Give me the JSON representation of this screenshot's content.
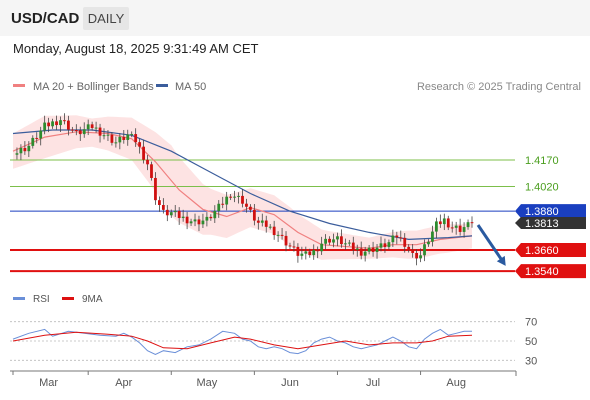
{
  "header": {
    "symbol": "USD/CAD",
    "timeframe": "DAILY",
    "timestamp": "Monday, August 18, 2025 9:31:49 AM CET"
  },
  "colors": {
    "ma20": "#f08080",
    "bollinger_fill": "#fde3e3",
    "ma50": "#3b5d9c",
    "bull_candle": "#2e8b2e",
    "bear_candle": "#d01010",
    "green_level": "#7cbf4a",
    "blue_level": "#1a3fbf",
    "red_level": "#e01010",
    "last_price_badge": "#333333",
    "rsi": "#6a8fd8",
    "rsi_ma": "#dd1111",
    "arrow": "#2a5aa0"
  },
  "chart_data": [
    {
      "type": "candlestick",
      "title": "USD/CAD",
      "timeframe": "DAILY",
      "legend": [
        "MA 20 + Bollinger Bands",
        "MA 50"
      ],
      "source": "Research © 2025 Trading Central",
      "x_labels": [
        "Mar",
        "Apr",
        "May",
        "Jun",
        "Jul",
        "Aug"
      ],
      "ylim": [
        1.349,
        1.451
      ],
      "last_price": "1.3813",
      "levels": [
        {
          "value": 1.417,
          "label": "1.4170",
          "kind": "green"
        },
        {
          "value": 1.402,
          "label": "1.4020",
          "kind": "green"
        },
        {
          "value": 1.388,
          "label": "1.3880",
          "kind": "blue"
        },
        {
          "value": 1.366,
          "label": "1.3660",
          "kind": "red"
        },
        {
          "value": 1.354,
          "label": "1.3540",
          "kind": "red"
        }
      ],
      "close_path": [
        [
          0,
          1.42
        ],
        [
          4,
          1.425
        ],
        [
          8,
          1.436
        ],
        [
          12,
          1.44
        ],
        [
          16,
          1.432
        ],
        [
          20,
          1.436
        ],
        [
          24,
          1.43
        ],
        [
          26,
          1.427
        ],
        [
          29,
          1.431
        ],
        [
          31,
          1.428
        ],
        [
          34,
          1.415
        ],
        [
          36,
          1.396
        ],
        [
          38,
          1.387
        ],
        [
          40,
          1.387
        ],
        [
          43,
          1.384
        ],
        [
          46,
          1.382
        ],
        [
          49,
          1.383
        ],
        [
          52,
          1.39
        ],
        [
          55,
          1.398
        ],
        [
          58,
          1.394
        ],
        [
          60,
          1.387
        ],
        [
          62,
          1.381
        ],
        [
          64,
          1.38
        ],
        [
          67,
          1.375
        ],
        [
          70,
          1.368
        ],
        [
          72,
          1.364
        ],
        [
          74,
          1.363
        ],
        [
          76,
          1.365
        ],
        [
          78,
          1.37
        ],
        [
          80,
          1.372
        ],
        [
          82,
          1.372
        ],
        [
          85,
          1.368
        ],
        [
          88,
          1.365
        ],
        [
          90,
          1.366
        ],
        [
          93,
          1.368
        ],
        [
          95,
          1.37
        ],
        [
          97,
          1.374
        ],
        [
          99,
          1.37
        ],
        [
          101,
          1.363
        ],
        [
          103,
          1.363
        ],
        [
          105,
          1.372
        ],
        [
          107,
          1.38
        ],
        [
          109,
          1.383
        ],
        [
          111,
          1.379
        ],
        [
          113,
          1.378
        ],
        [
          115,
          1.38
        ],
        [
          116,
          1.3813
        ]
      ],
      "ma20": [
        [
          0,
          1.422
        ],
        [
          8,
          1.43
        ],
        [
          16,
          1.433
        ],
        [
          24,
          1.432
        ],
        [
          30,
          1.429
        ],
        [
          36,
          1.416
        ],
        [
          42,
          1.4
        ],
        [
          48,
          1.389
        ],
        [
          54,
          1.385
        ],
        [
          60,
          1.39
        ],
        [
          66,
          1.386
        ],
        [
          72,
          1.376
        ],
        [
          78,
          1.369
        ],
        [
          84,
          1.368
        ],
        [
          90,
          1.367
        ],
        [
          96,
          1.369
        ],
        [
          102,
          1.369
        ],
        [
          108,
          1.372
        ],
        [
          116,
          1.374
        ]
      ],
      "ma50": [
        [
          0,
          1.432
        ],
        [
          10,
          1.434
        ],
        [
          20,
          1.434
        ],
        [
          30,
          1.431
        ],
        [
          40,
          1.422
        ],
        [
          50,
          1.41
        ],
        [
          60,
          1.398
        ],
        [
          70,
          1.388
        ],
        [
          80,
          1.381
        ],
        [
          90,
          1.376
        ],
        [
          100,
          1.372
        ],
        [
          110,
          1.373
        ],
        [
          116,
          1.374
        ]
      ],
      "bollinger_width": [
        [
          0,
          0.01
        ],
        [
          8,
          0.012
        ],
        [
          20,
          0.008
        ],
        [
          30,
          0.012
        ],
        [
          40,
          0.02
        ],
        [
          50,
          0.013
        ],
        [
          60,
          0.011
        ],
        [
          70,
          0.011
        ],
        [
          80,
          0.008
        ],
        [
          90,
          0.006
        ],
        [
          100,
          0.008
        ],
        [
          110,
          0.008
        ],
        [
          116,
          0.007
        ]
      ],
      "projection": {
        "from": [
          116,
          1.3813
        ],
        "to": [
          123,
          1.357
        ]
      }
    },
    {
      "type": "line",
      "title": "RSI",
      "legend": [
        "RSI",
        "9MA"
      ],
      "ylim": [
        20,
        80
      ],
      "y_ticks": [
        30,
        50,
        70
      ],
      "series": [
        {
          "name": "RSI",
          "path": [
            [
              0,
              52
            ],
            [
              4,
              58
            ],
            [
              8,
              62
            ],
            [
              10,
              55
            ],
            [
              14,
              60
            ],
            [
              18,
              58
            ],
            [
              22,
              56
            ],
            [
              26,
              55
            ],
            [
              28,
              58
            ],
            [
              30,
              54
            ],
            [
              32,
              48
            ],
            [
              34,
              40
            ],
            [
              36,
              36
            ],
            [
              38,
              40
            ],
            [
              41,
              38
            ],
            [
              44,
              44
            ],
            [
              47,
              46
            ],
            [
              50,
              52
            ],
            [
              53,
              60
            ],
            [
              56,
              58
            ],
            [
              58,
              52
            ],
            [
              60,
              50
            ],
            [
              62,
              44
            ],
            [
              64,
              42
            ],
            [
              66,
              44
            ],
            [
              68,
              42
            ],
            [
              70,
              38
            ],
            [
              72,
              37
            ],
            [
              74,
              40
            ],
            [
              76,
              48
            ],
            [
              78,
              52
            ],
            [
              80,
              54
            ],
            [
              82,
              50
            ],
            [
              84,
              48
            ],
            [
              86,
              44
            ],
            [
              88,
              42
            ],
            [
              90,
              44
            ],
            [
              92,
              46
            ],
            [
              94,
              50
            ],
            [
              96,
              54
            ],
            [
              98,
              50
            ],
            [
              100,
              44
            ],
            [
              102,
              42
            ],
            [
              104,
              52
            ],
            [
              106,
              58
            ],
            [
              108,
              62
            ],
            [
              110,
              56
            ],
            [
              112,
              58
            ],
            [
              114,
              60
            ],
            [
              116,
              60
            ]
          ]
        },
        {
          "name": "9MA",
          "path": [
            [
              0,
              50
            ],
            [
              8,
              56
            ],
            [
              16,
              59
            ],
            [
              24,
              57
            ],
            [
              30,
              55
            ],
            [
              34,
              50
            ],
            [
              38,
              43
            ],
            [
              44,
              42
            ],
            [
              50,
              48
            ],
            [
              56,
              54
            ],
            [
              60,
              52
            ],
            [
              66,
              46
            ],
            [
              72,
              42
            ],
            [
              78,
              46
            ],
            [
              84,
              50
            ],
            [
              90,
              46
            ],
            [
              96,
              48
            ],
            [
              102,
              48
            ],
            [
              106,
              50
            ],
            [
              110,
              55
            ],
            [
              116,
              56
            ]
          ]
        }
      ]
    }
  ]
}
